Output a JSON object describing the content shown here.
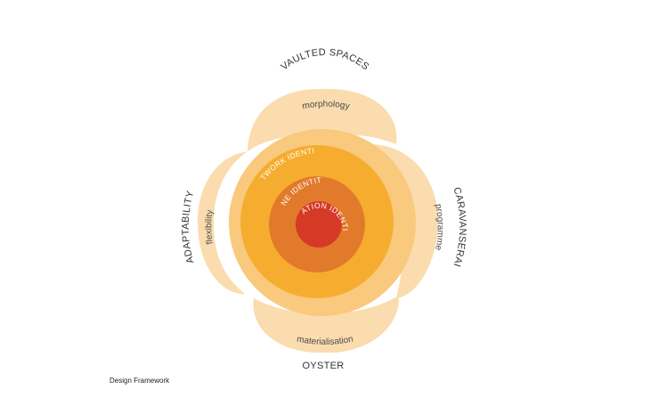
{
  "diagram": {
    "caption": "Design Framework",
    "outer_labels": {
      "top": "VAULTED SPACES",
      "right": "CARAVANSERAI",
      "bottom": "OYSTER",
      "left": "ADAPTABILITY"
    },
    "petal_labels": {
      "top": "morphology",
      "right": "programme",
      "bottom": "materialisation",
      "left": "flexibility"
    },
    "rings": {
      "network": "NETWORK IDENTITY",
      "line": "LINE IDENTITY",
      "station": "STATION IDENTITY"
    },
    "colors": {
      "petal": "#fbdcae",
      "halo": "#f9c97d",
      "network": "#f6ad2f",
      "line": "#e27a2b",
      "station": "#d43a26"
    }
  }
}
